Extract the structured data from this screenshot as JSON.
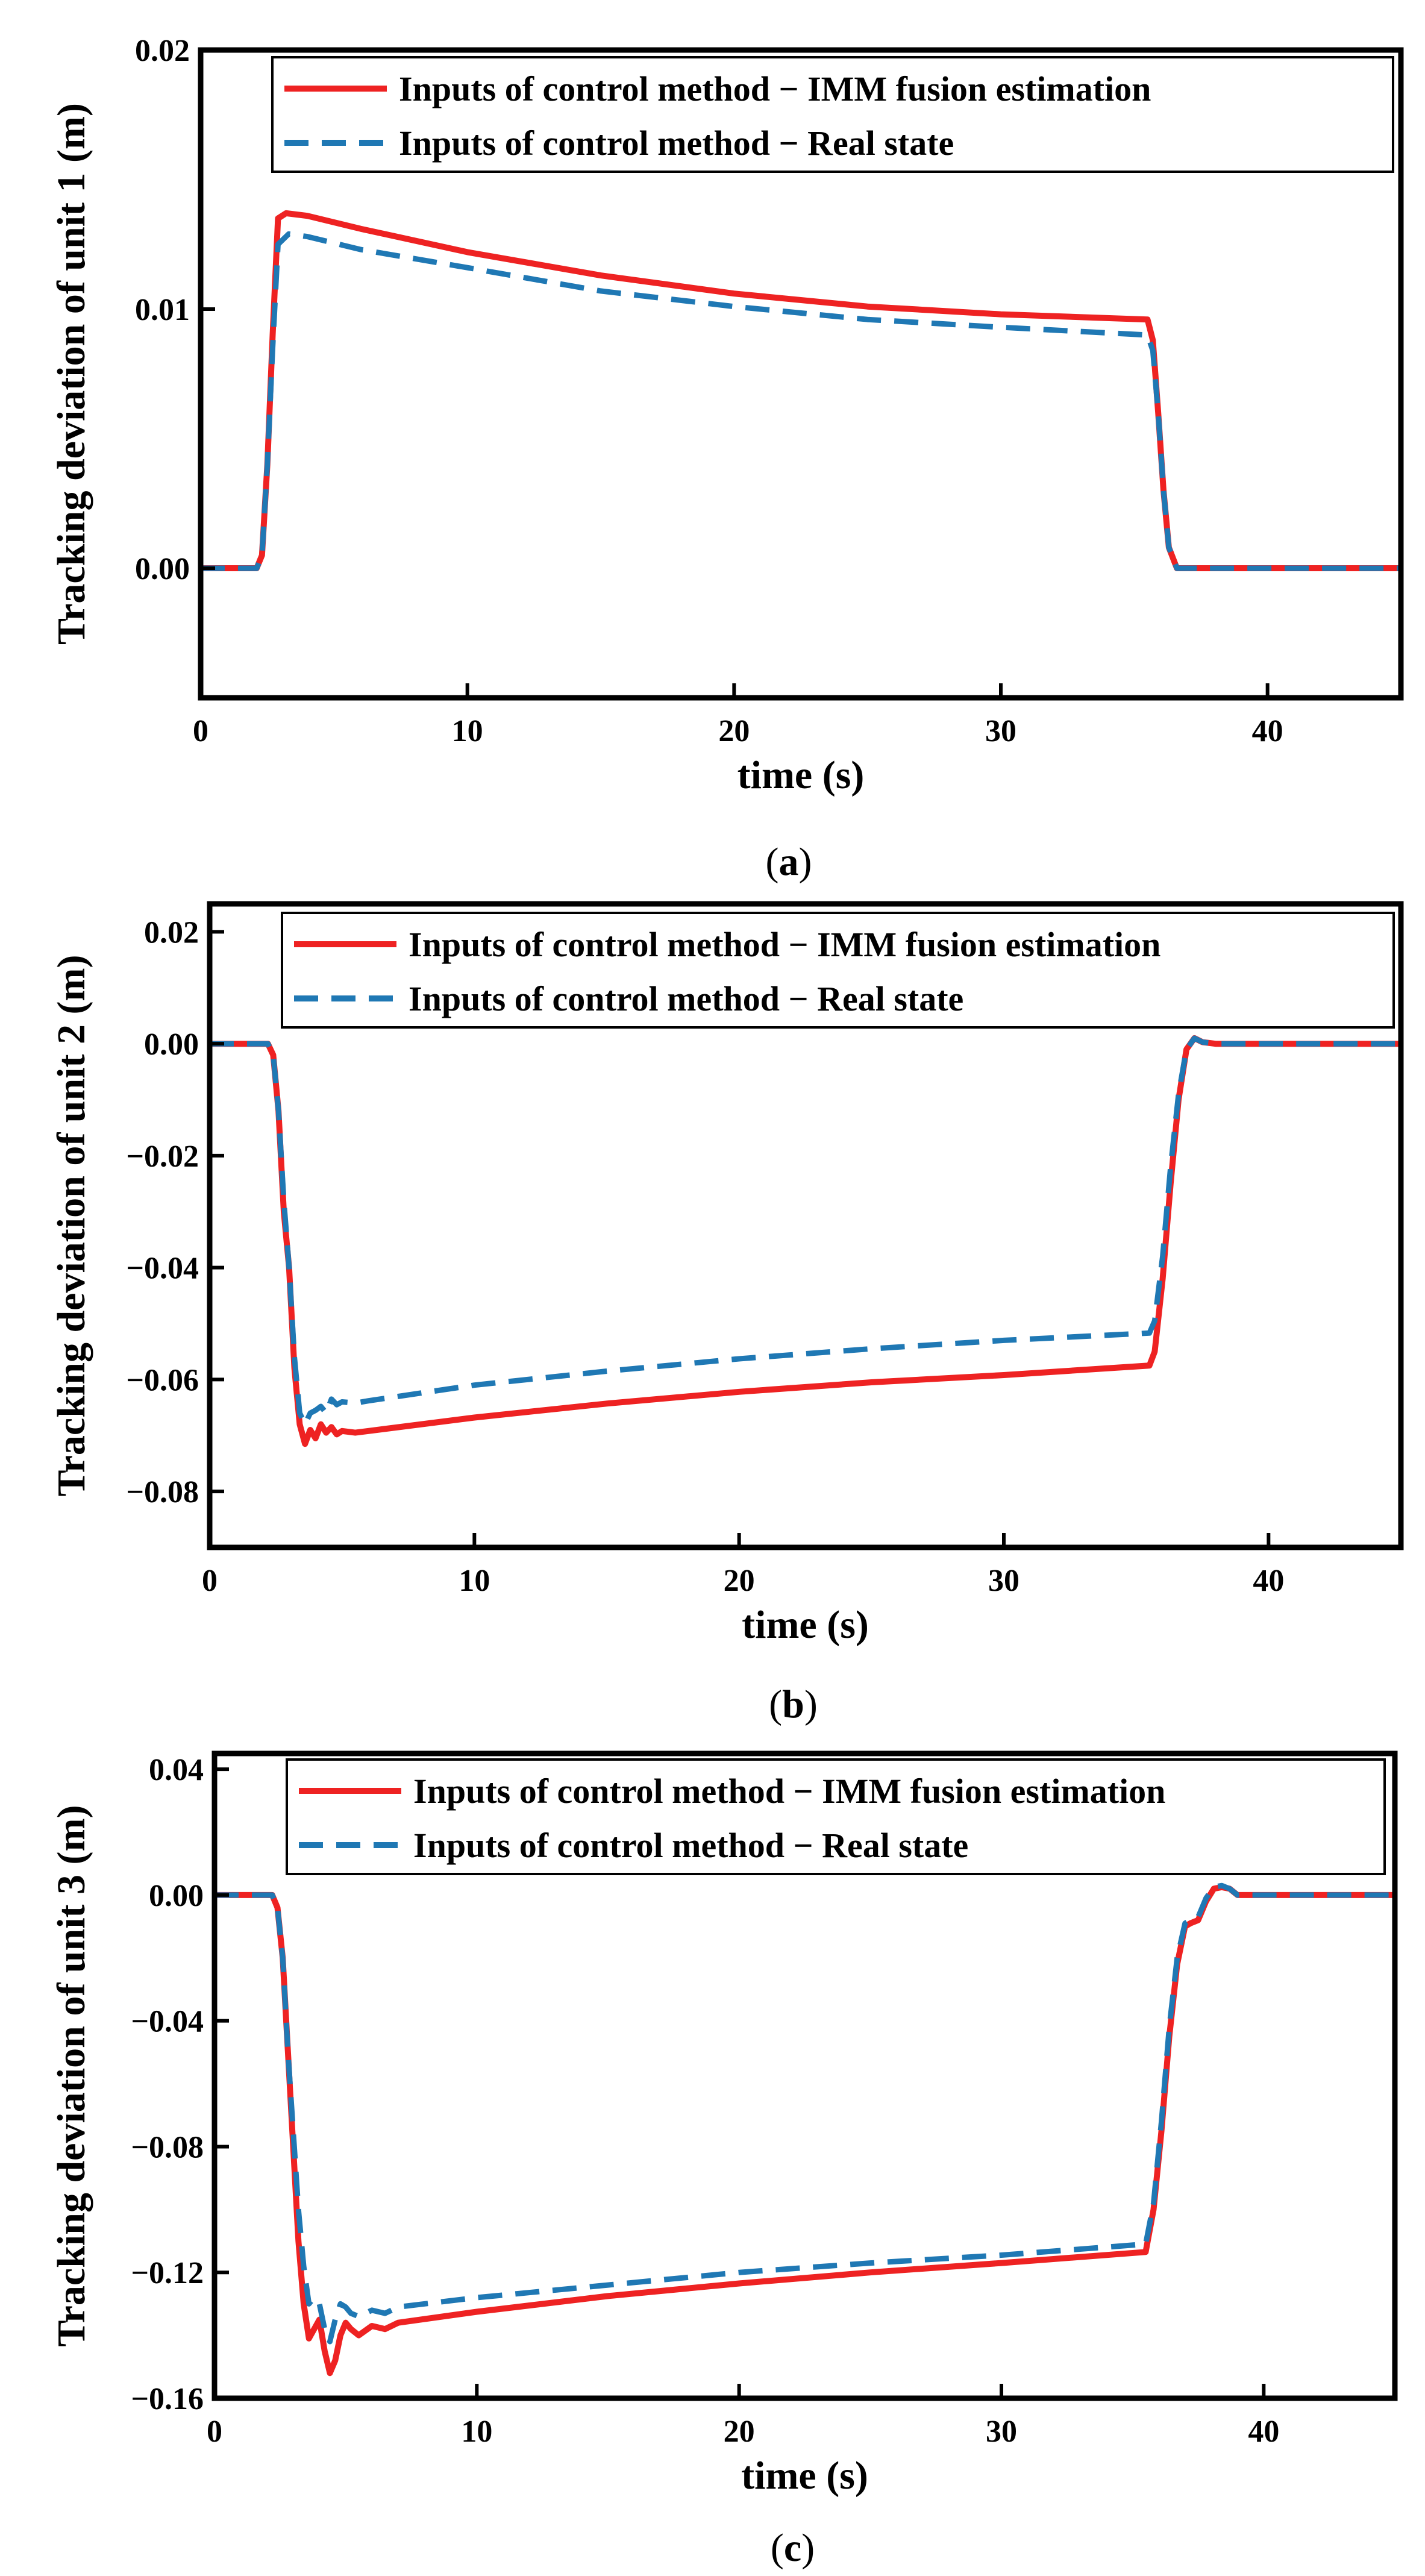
{
  "chart_data": [
    {
      "type": "line",
      "caption": "a",
      "xlabel": "time (s)",
      "ylabel": "Tracking deviation of unit 1 (m)",
      "xlim": [
        0,
        45
      ],
      "ylim": [
        -0.005,
        0.02
      ],
      "xticks": [
        0,
        10,
        20,
        30,
        40
      ],
      "xtick_labels": [
        "0",
        "10",
        "20",
        "30",
        "40"
      ],
      "yticks": [
        0.0,
        0.01,
        0.02
      ],
      "ytick_labels": [
        "0.00",
        "0.01",
        "0.02"
      ],
      "legend_position": "top-right",
      "series": [
        {
          "name": "Inputs of control method − IMM fusion estimation",
          "color": "#ee2222",
          "style": "solid",
          "x": [
            0,
            2.1,
            2.3,
            2.5,
            2.7,
            2.9,
            3.2,
            4,
            6,
            10,
            15,
            20,
            25,
            30,
            35.5,
            35.7,
            35.9,
            36.1,
            36.3,
            36.6,
            37,
            40,
            45
          ],
          "y": [
            0,
            0,
            0.0005,
            0.004,
            0.009,
            0.0135,
            0.0137,
            0.0136,
            0.0131,
            0.0122,
            0.0113,
            0.0106,
            0.0101,
            0.0098,
            0.0096,
            0.0088,
            0.006,
            0.003,
            0.0008,
            0,
            0,
            0,
            0
          ]
        },
        {
          "name": "Inputs of control method − Real state",
          "color": "#1f78b4",
          "style": "dashed",
          "x": [
            0,
            2.1,
            2.3,
            2.5,
            2.7,
            2.9,
            3.3,
            4,
            6,
            10,
            15,
            20,
            25,
            30,
            35.5,
            35.7,
            35.9,
            36.1,
            36.3,
            36.6,
            37,
            40,
            45
          ],
          "y": [
            0,
            0,
            0.0005,
            0.004,
            0.0085,
            0.0125,
            0.0129,
            0.0128,
            0.0123,
            0.0116,
            0.0107,
            0.0101,
            0.0096,
            0.0093,
            0.009,
            0.0084,
            0.006,
            0.003,
            0.0008,
            0,
            0,
            0,
            0
          ]
        }
      ]
    },
    {
      "type": "line",
      "caption": "b",
      "xlabel": "time (s)",
      "ylabel": "Tracking deviation of unit 2 (m)",
      "xlim": [
        0,
        45
      ],
      "ylim": [
        -0.09,
        0.025
      ],
      "xticks": [
        0,
        10,
        20,
        30,
        40
      ],
      "xtick_labels": [
        "0",
        "10",
        "20",
        "30",
        "40"
      ],
      "yticks": [
        0.02,
        0.0,
        -0.02,
        -0.04,
        -0.06,
        -0.08
      ],
      "ytick_labels": [
        "0.02",
        "0.00",
        "−0.02",
        "−0.04",
        "−0.06",
        "−0.08"
      ],
      "legend_position": "top-right",
      "series": [
        {
          "name": "Inputs of control method − IMM fusion estimation",
          "color": "#ee2222",
          "style": "solid",
          "x": [
            0,
            2.2,
            2.4,
            2.6,
            2.8,
            3.0,
            3.2,
            3.4,
            3.6,
            3.8,
            4.0,
            4.2,
            4.4,
            4.6,
            4.8,
            5.0,
            5.5,
            6,
            10,
            15,
            20,
            25,
            30,
            35.5,
            35.7,
            36.0,
            36.3,
            36.6,
            36.9,
            37.2,
            37.5,
            38,
            39,
            45
          ],
          "y": [
            0,
            0,
            -0.002,
            -0.012,
            -0.03,
            -0.04,
            -0.058,
            -0.068,
            -0.0715,
            -0.069,
            -0.0705,
            -0.068,
            -0.0695,
            -0.0685,
            -0.0698,
            -0.0692,
            -0.0695,
            -0.0692,
            -0.0668,
            -0.0643,
            -0.0622,
            -0.0605,
            -0.0592,
            -0.0575,
            -0.055,
            -0.042,
            -0.025,
            -0.01,
            -0.001,
            0.001,
            0.0003,
            0,
            0,
            0
          ]
        },
        {
          "name": "Inputs of control method − Real state",
          "color": "#1f78b4",
          "style": "dashed",
          "x": [
            0,
            2.2,
            2.4,
            2.6,
            2.8,
            3.0,
            3.2,
            3.4,
            3.6,
            3.8,
            4.0,
            4.2,
            4.4,
            4.6,
            4.8,
            5.0,
            5.5,
            6,
            10,
            15,
            20,
            25,
            30,
            35.5,
            35.7,
            36.0,
            36.3,
            36.6,
            36.9,
            37.2,
            37.5,
            38,
            39,
            45
          ],
          "y": [
            0,
            0,
            -0.002,
            -0.012,
            -0.028,
            -0.04,
            -0.056,
            -0.066,
            -0.068,
            -0.066,
            -0.0655,
            -0.0648,
            -0.066,
            -0.0635,
            -0.0645,
            -0.064,
            -0.0642,
            -0.0638,
            -0.061,
            -0.0585,
            -0.0563,
            -0.0545,
            -0.053,
            -0.0517,
            -0.0495,
            -0.038,
            -0.022,
            -0.009,
            -0.001,
            0.001,
            0.0003,
            0,
            0,
            0
          ]
        }
      ]
    },
    {
      "type": "line",
      "caption": "c",
      "xlabel": "time (s)",
      "ylabel": "Tracking deviation of unit 3 (m)",
      "xlim": [
        0,
        45
      ],
      "ylim": [
        -0.16,
        0.045
      ],
      "xticks": [
        0,
        10,
        20,
        30,
        40
      ],
      "xtick_labels": [
        "0",
        "10",
        "20",
        "30",
        "40"
      ],
      "yticks": [
        0.04,
        0.0,
        -0.04,
        -0.08,
        -0.12,
        -0.16
      ],
      "ytick_labels": [
        "0.04",
        "0.00",
        "−0.04",
        "−0.08",
        "−0.12",
        "−0.16"
      ],
      "legend_position": "top-right",
      "series": [
        {
          "name": "Inputs of control method − IMM fusion estimation",
          "color": "#ee2222",
          "style": "solid",
          "x": [
            0,
            2.2,
            2.4,
            2.6,
            2.8,
            3.0,
            3.2,
            3.4,
            3.6,
            3.8,
            4.0,
            4.2,
            4.4,
            4.6,
            4.8,
            5.0,
            5.2,
            5.5,
            6.0,
            6.5,
            7.0,
            10,
            15,
            20,
            25,
            30,
            35.5,
            35.8,
            36.1,
            36.4,
            36.7,
            37.0,
            37.2,
            37.5,
            37.8,
            38.1,
            38.4,
            38.7,
            39,
            40,
            45
          ],
          "y": [
            0,
            0,
            -0.004,
            -0.02,
            -0.05,
            -0.08,
            -0.11,
            -0.13,
            -0.141,
            -0.138,
            -0.135,
            -0.145,
            -0.152,
            -0.148,
            -0.14,
            -0.136,
            -0.138,
            -0.14,
            -0.137,
            -0.138,
            -0.136,
            -0.1325,
            -0.1275,
            -0.1235,
            -0.12,
            -0.117,
            -0.1135,
            -0.1,
            -0.075,
            -0.045,
            -0.022,
            -0.01,
            -0.009,
            -0.008,
            -0.002,
            0.002,
            0.0025,
            0.002,
            0,
            0,
            0
          ]
        },
        {
          "name": "Inputs of control method − Real state",
          "color": "#1f78b4",
          "style": "dashed",
          "x": [
            0,
            2.2,
            2.4,
            2.6,
            2.8,
            3.0,
            3.2,
            3.4,
            3.6,
            3.8,
            4.0,
            4.2,
            4.4,
            4.6,
            4.8,
            5.0,
            5.2,
            5.5,
            6.0,
            6.5,
            7.0,
            10,
            15,
            20,
            25,
            30,
            35.5,
            35.8,
            36.1,
            36.4,
            36.7,
            37.0,
            37.2,
            37.5,
            37.8,
            38.1,
            38.4,
            38.7,
            39,
            40,
            45
          ],
          "y": [
            0,
            0,
            -0.004,
            -0.02,
            -0.05,
            -0.075,
            -0.1,
            -0.118,
            -0.13,
            -0.128,
            -0.13,
            -0.138,
            -0.142,
            -0.135,
            -0.13,
            -0.131,
            -0.133,
            -0.134,
            -0.132,
            -0.133,
            -0.131,
            -0.128,
            -0.124,
            -0.12,
            -0.117,
            -0.1145,
            -0.111,
            -0.098,
            -0.072,
            -0.042,
            -0.02,
            -0.009,
            -0.008,
            -0.007,
            -0.001,
            0.0025,
            0.003,
            0.002,
            0,
            0,
            0
          ]
        }
      ]
    }
  ]
}
